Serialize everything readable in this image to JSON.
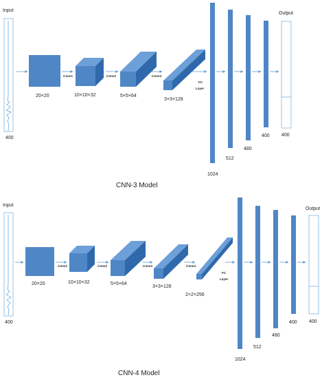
{
  "colors": {
    "block_front": "#4f86c6",
    "block_top": "#6d9fd8",
    "block_side": "#2f69ab",
    "arrow": "#5b9bd5",
    "box_border": "#7fb1dc",
    "signal": "#5b9bd5"
  },
  "models": [
    {
      "caption": "CNN-3 Model",
      "input_label": "Input",
      "input_size": "400",
      "blocks": [
        {
          "size": "20×20"
        },
        {
          "size": "10×10×32"
        },
        {
          "size": "5×5×64"
        },
        {
          "size": "3×3×128"
        }
      ],
      "conv_labels": [
        "Conv1",
        "Conv2",
        "Conv3"
      ],
      "fc_label_1": "FC",
      "fc_label_2": "Layer",
      "fc_sizes": [
        "1024",
        "512",
        "480",
        "400"
      ],
      "output_label": "Output",
      "output_size": "400"
    },
    {
      "caption": "CNN-4 Model",
      "input_label": "Input",
      "input_size": "400",
      "blocks": [
        {
          "size": "20×20"
        },
        {
          "size": "10×10×32"
        },
        {
          "size": "5×5×64"
        },
        {
          "size": "3×3×128"
        },
        {
          "size": "2×2×256"
        }
      ],
      "conv_labels": [
        "Conv1",
        "Conv2",
        "Conv3",
        "Conv4"
      ],
      "fc_label_1": "FC",
      "fc_label_2": "Layer",
      "fc_sizes": [
        "1024",
        "512",
        "480",
        "400"
      ],
      "output_label": "Output",
      "output_size": "400"
    }
  ]
}
